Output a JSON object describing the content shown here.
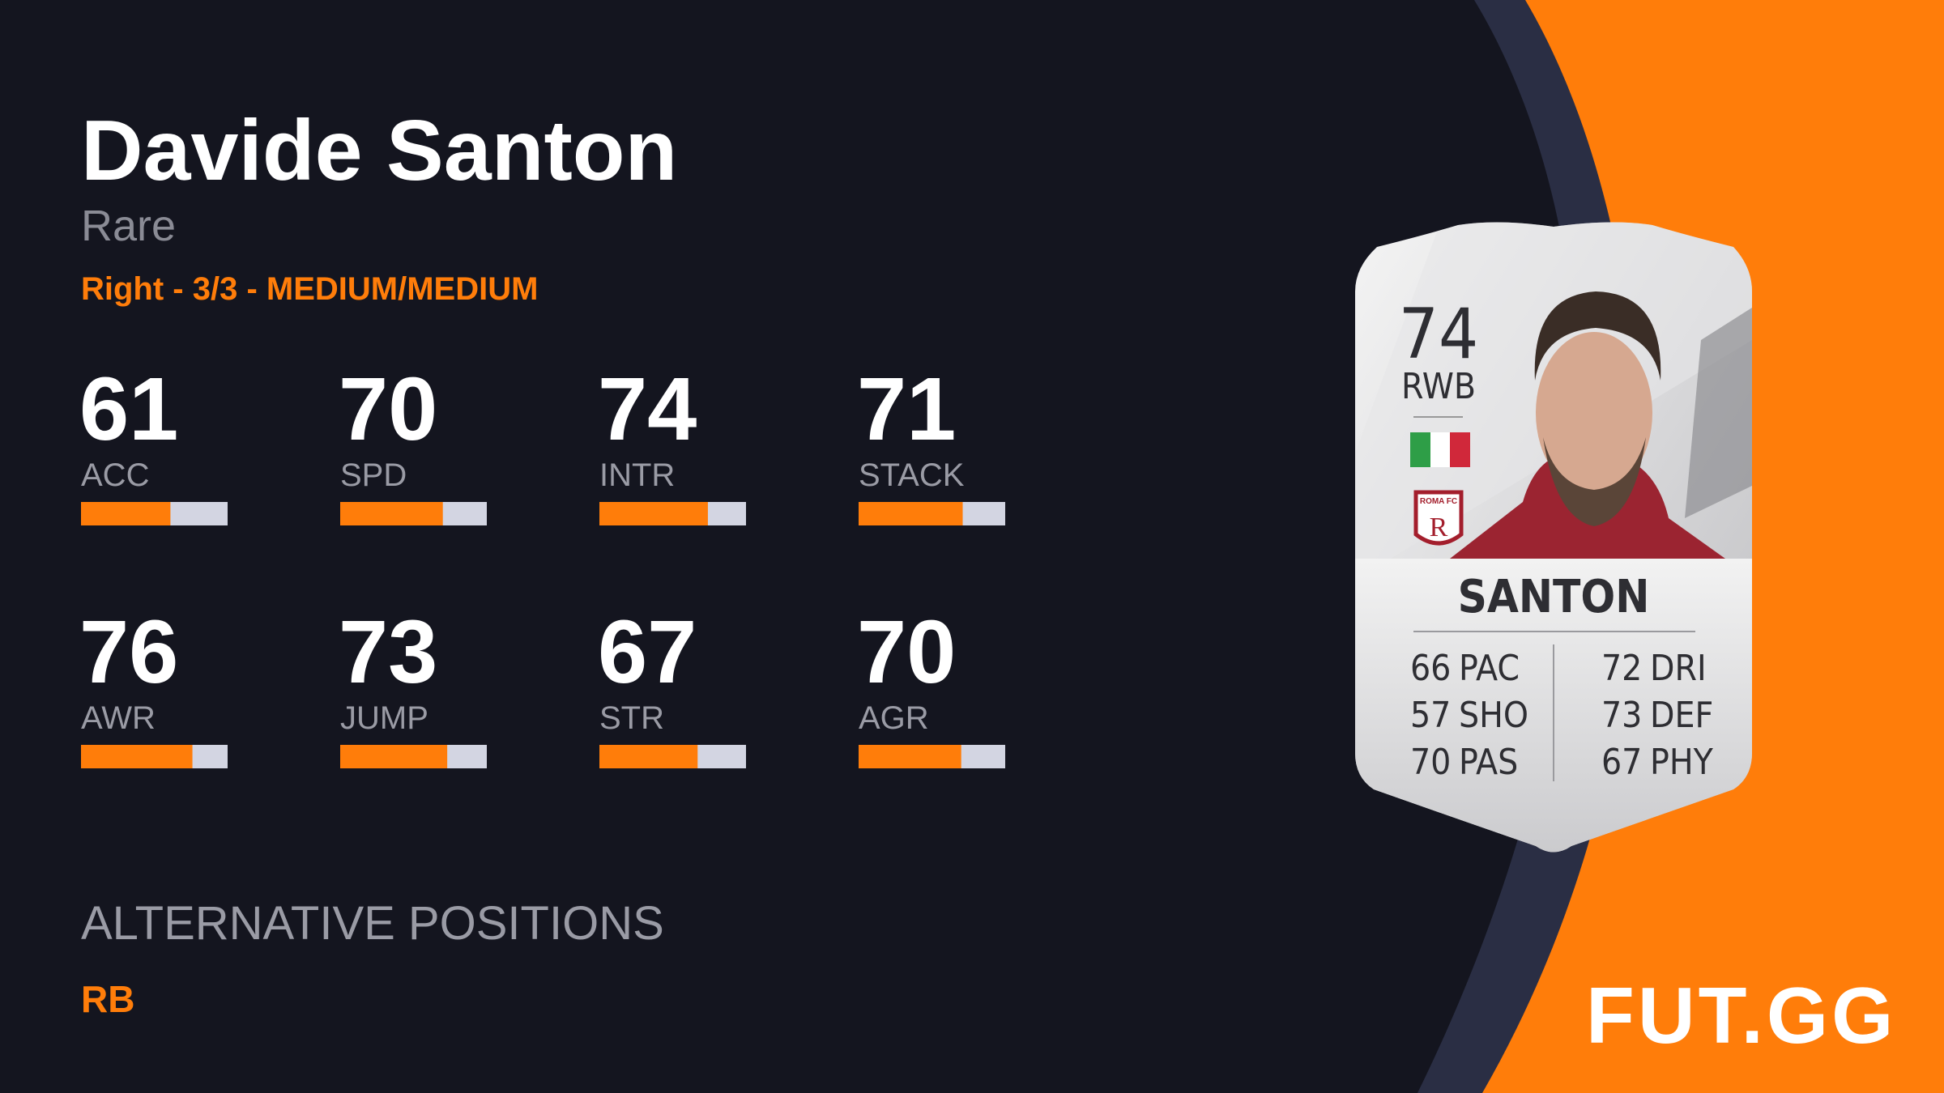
{
  "player": {
    "name": "Davide Santon",
    "rarity": "Rare",
    "details": "Right - 3/3 - MEDIUM/MEDIUM"
  },
  "stats": {
    "xlim": [
      0,
      100
    ],
    "items": [
      {
        "value": 61,
        "label": "ACC"
      },
      {
        "value": 70,
        "label": "SPD"
      },
      {
        "value": 74,
        "label": "INTR"
      },
      {
        "value": 71,
        "label": "STACK"
      },
      {
        "value": 76,
        "label": "AWR"
      },
      {
        "value": 73,
        "label": "JUMP"
      },
      {
        "value": 67,
        "label": "STR"
      },
      {
        "value": 70,
        "label": "AGR"
      }
    ]
  },
  "alternative_positions": {
    "title": "ALTERNATIVE POSITIONS",
    "positions": [
      "RB"
    ]
  },
  "card": {
    "rating": 74,
    "position": "RWB",
    "club": "ROMA FC",
    "name": "SANTON",
    "attributes": [
      {
        "value": 66,
        "label": "PAC"
      },
      {
        "value": 57,
        "label": "SHO"
      },
      {
        "value": 70,
        "label": "PAS"
      },
      {
        "value": 72,
        "label": "DRI"
      },
      {
        "value": 73,
        "label": "DEF"
      },
      {
        "value": 67,
        "label": "PHY"
      }
    ]
  },
  "logo": "FUT.GG"
}
